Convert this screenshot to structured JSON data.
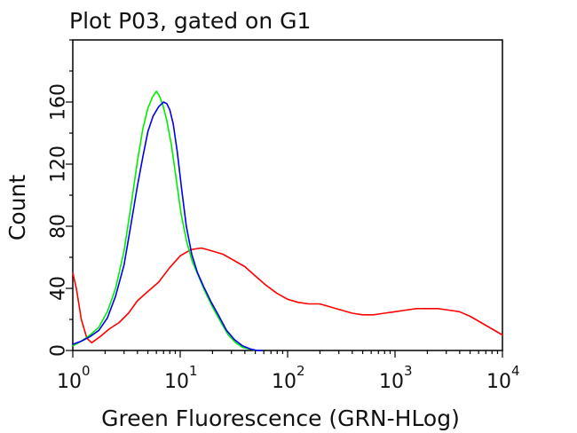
{
  "chart_data": {
    "type": "line",
    "title": "Plot P03, gated on G1",
    "xlabel": "Green Fluorescence (GRN-HLog)",
    "ylabel": "Count",
    "x_scale": "log",
    "xlim": [
      1,
      10000
    ],
    "ylim": [
      0,
      200
    ],
    "grid": false,
    "x_ticks": [
      {
        "base": "10",
        "exp": "0",
        "value": 1
      },
      {
        "base": "10",
        "exp": "1",
        "value": 10
      },
      {
        "base": "10",
        "exp": "2",
        "value": 100
      },
      {
        "base": "10",
        "exp": "3",
        "value": 1000
      },
      {
        "base": "10",
        "exp": "4",
        "value": 10000
      }
    ],
    "y_ticks": [
      "0",
      "40",
      "80",
      "120",
      "160"
    ],
    "y_tick_values": [
      0,
      40,
      80,
      120,
      160
    ],
    "series": [
      {
        "color": "#ff0000",
        "x": [
          1.0,
          1.08,
          1.2,
          1.35,
          1.5,
          1.8,
          2.2,
          2.7,
          3.3,
          4.0,
          5.0,
          6.3,
          7.9,
          10,
          12.6,
          15.8,
          20,
          25,
          31.6,
          40,
          50,
          63,
          79,
          100,
          126,
          158,
          200,
          251,
          316,
          400,
          501,
          631,
          794,
          1000,
          1259,
          1585,
          1995,
          2512,
          3162,
          3981,
          5012,
          6310,
          7943,
          10000
        ],
        "y": [
          50,
          40,
          20,
          8,
          5,
          9,
          14,
          18,
          24,
          32,
          38,
          44,
          53,
          61,
          65,
          66,
          64,
          62,
          58,
          54,
          48,
          42,
          37,
          33,
          31,
          30,
          30,
          28,
          26,
          24,
          23,
          23,
          24,
          25,
          26,
          27,
          27,
          27,
          26,
          25,
          22,
          18,
          14,
          10
        ]
      },
      {
        "color": "#00ee00",
        "x": [
          1.0,
          1.2,
          1.45,
          1.75,
          2.1,
          2.5,
          3.0,
          3.5,
          4.0,
          4.5,
          5.0,
          5.5,
          6.0,
          6.4,
          6.9,
          7.5,
          8.3,
          9.2,
          10.2,
          11.5,
          13.0,
          14.8,
          17.0,
          20,
          24,
          28,
          33,
          38,
          44,
          50
        ],
        "y": [
          3,
          6,
          10,
          15,
          25,
          40,
          64,
          94,
          122,
          143,
          156,
          163,
          167,
          164,
          158,
          148,
          132,
          110,
          88,
          70,
          57,
          48,
          38,
          28,
          18,
          10,
          5,
          2,
          1,
          0
        ]
      },
      {
        "color": "#0000ee",
        "x": [
          1.0,
          1.2,
          1.45,
          1.75,
          2.1,
          2.5,
          3.0,
          3.5,
          4.0,
          4.5,
          5.0,
          5.6,
          6.3,
          7.0,
          7.5,
          8.0,
          8.6,
          9.4,
          10.3,
          11.4,
          12.8,
          14.5,
          16.6,
          19.5,
          23,
          27,
          32,
          38,
          45,
          52,
          58
        ],
        "y": [
          4,
          6,
          9,
          13,
          21,
          35,
          55,
          82,
          106,
          125,
          141,
          151,
          157,
          160,
          159,
          155,
          146,
          128,
          104,
          80,
          62,
          50,
          41,
          31,
          22,
          13,
          7,
          3,
          1,
          0,
          0
        ]
      }
    ]
  }
}
